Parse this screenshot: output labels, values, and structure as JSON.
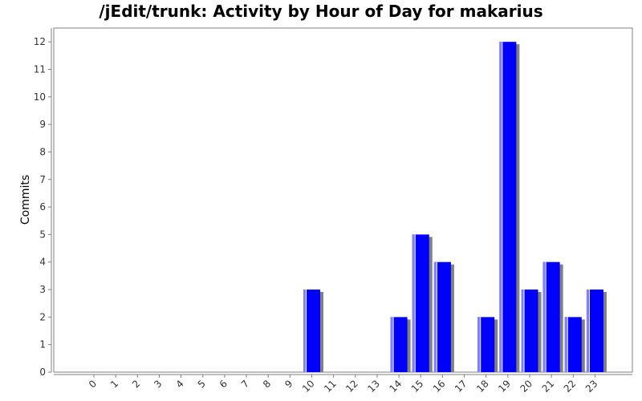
{
  "chart_data": {
    "type": "bar",
    "title": "/jEdit/trunk: Activity by Hour of Day for makarius",
    "xlabel": "",
    "ylabel": "Commits",
    "categories": [
      "0",
      "1",
      "2",
      "3",
      "4",
      "5",
      "6",
      "7",
      "8",
      "9",
      "10",
      "11",
      "12",
      "13",
      "14",
      "15",
      "16",
      "17",
      "18",
      "19",
      "20",
      "21",
      "22",
      "23"
    ],
    "values": [
      0,
      0,
      0,
      0,
      0,
      0,
      0,
      0,
      0,
      0,
      3,
      0,
      0,
      0,
      2,
      5,
      4,
      0,
      2,
      12,
      3,
      4,
      2,
      3
    ],
    "ylim": [
      0,
      12.5
    ],
    "yticks": [
      "0",
      "1",
      "2",
      "3",
      "4",
      "5",
      "6",
      "7",
      "8",
      "9",
      "10",
      "11",
      "12"
    ],
    "grid": false,
    "colors": {
      "bar": "#0000ff",
      "bar_highlight": "#8080ff",
      "shadow": "#808080",
      "plot_border": "#808080"
    }
  }
}
